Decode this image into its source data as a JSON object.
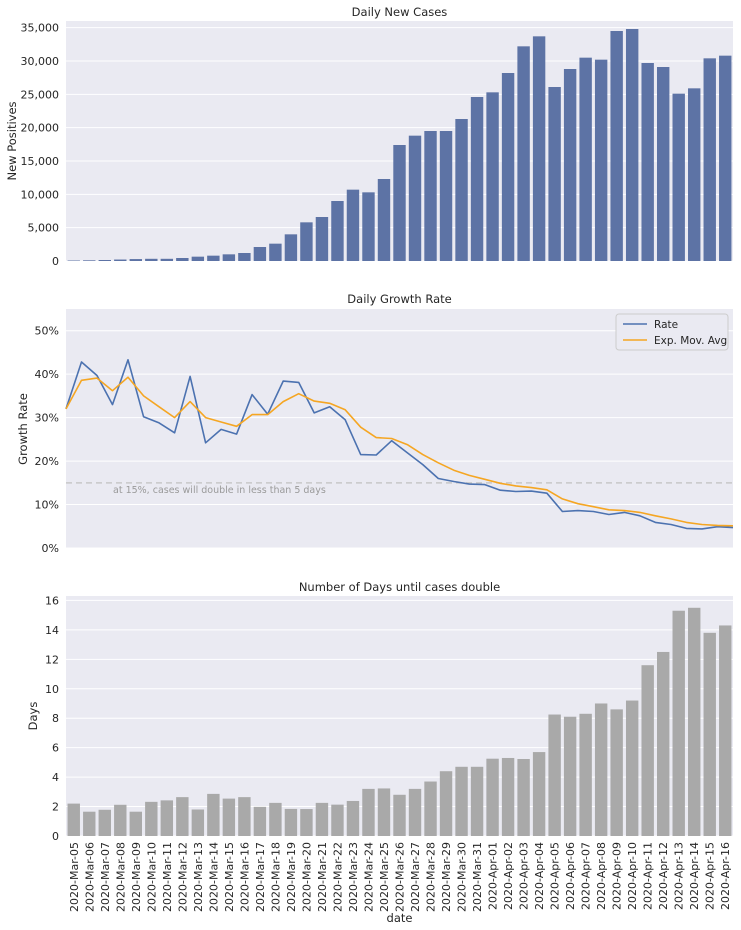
{
  "chart_data": [
    {
      "type": "bar",
      "title": "Daily New Cases",
      "xlabel": "",
      "ylabel": "New Positives",
      "ylim": [
        0,
        36000
      ],
      "yticks": [
        0,
        5000,
        10000,
        15000,
        20000,
        25000,
        30000,
        35000
      ],
      "ytick_labels": [
        "0",
        "5,000",
        "10,000",
        "15,000",
        "20,000",
        "25,000",
        "30,000",
        "35,000"
      ],
      "grid": true,
      "color": "#5d73a5",
      "values": [
        70,
        100,
        150,
        220,
        290,
        330,
        330,
        450,
        650,
        800,
        1000,
        1200,
        2100,
        2600,
        4000,
        5800,
        6600,
        9000,
        10700,
        10300,
        12300,
        17400,
        18800,
        19500,
        19500,
        21300,
        24600,
        25300,
        28200,
        32200,
        33700,
        26100,
        28800,
        30500,
        30200,
        34500,
        34800,
        29700,
        29100,
        25100,
        25900,
        30400,
        30800
      ]
    },
    {
      "type": "line",
      "title": "Daily Growth Rate",
      "xlabel": "",
      "ylabel": "Growth Rate",
      "ylim": [
        0,
        0.55
      ],
      "yticks": [
        0,
        0.1,
        0.2,
        0.3,
        0.4,
        0.5
      ],
      "ytick_labels": [
        "0%",
        "10%",
        "20%",
        "30%",
        "40%",
        "50%"
      ],
      "grid": true,
      "legend": "top-right",
      "series": [
        {
          "name": "Rate",
          "color": "#4c72b0",
          "values": [
            0.32,
            0.428,
            0.397,
            0.33,
            0.433,
            0.302,
            0.288,
            0.265,
            0.395,
            0.242,
            0.273,
            0.262,
            0.353,
            0.308,
            0.384,
            0.381,
            0.311,
            0.325,
            0.295,
            0.215,
            0.214,
            0.247,
            0.219,
            0.192,
            0.16,
            0.153,
            0.147,
            0.146,
            0.133,
            0.13,
            0.131,
            0.126,
            0.084,
            0.086,
            0.084,
            0.077,
            0.082,
            0.074,
            0.059,
            0.054,
            0.045,
            0.044,
            0.049,
            0.047
          ]
        },
        {
          "name": "Exp. Mov. Avg",
          "color": "#f5a623",
          "values": [
            0.32,
            0.386,
            0.391,
            0.362,
            0.393,
            0.35,
            0.325,
            0.3,
            0.337,
            0.3,
            0.29,
            0.28,
            0.307,
            0.307,
            0.337,
            0.355,
            0.338,
            0.333,
            0.318,
            0.278,
            0.254,
            0.252,
            0.238,
            0.215,
            0.196,
            0.179,
            0.167,
            0.158,
            0.149,
            0.143,
            0.139,
            0.134,
            0.113,
            0.102,
            0.095,
            0.088,
            0.086,
            0.082,
            0.074,
            0.067,
            0.059,
            0.054,
            0.052,
            0.051
          ]
        }
      ],
      "reference_line": {
        "y": 0.15,
        "color": "#c8c8c8",
        "label": "at 15%, cases will double in less than 5 days"
      }
    },
    {
      "type": "bar",
      "title": "Number of Days until cases double",
      "xlabel": "date",
      "ylabel": "Days",
      "ylim": [
        0,
        16.3
      ],
      "yticks": [
        0,
        2,
        4,
        6,
        8,
        10,
        12,
        14,
        16
      ],
      "ytick_labels": [
        "0",
        "2",
        "4",
        "6",
        "8",
        "10",
        "12",
        "14",
        "16"
      ],
      "grid": true,
      "color": "#a9a9a9",
      "categories": [
        "2020-Mar-05",
        "2020-Mar-06",
        "2020-Mar-07",
        "2020-Mar-08",
        "2020-Mar-09",
        "2020-Mar-10",
        "2020-Mar-11",
        "2020-Mar-12",
        "2020-Mar-13",
        "2020-Mar-14",
        "2020-Mar-15",
        "2020-Mar-16",
        "2020-Mar-17",
        "2020-Mar-18",
        "2020-Mar-19",
        "2020-Mar-20",
        "2020-Mar-21",
        "2020-Mar-22",
        "2020-Mar-23",
        "2020-Mar-24",
        "2020-Mar-25",
        "2020-Mar-26",
        "2020-Mar-27",
        "2020-Mar-28",
        "2020-Mar-29",
        "2020-Mar-30",
        "2020-Mar-31",
        "2020-Apr-01",
        "2020-Apr-02",
        "2020-Apr-03",
        "2020-Apr-04",
        "2020-Apr-05",
        "2020-Apr-06",
        "2020-Apr-07",
        "2020-Apr-08",
        "2020-Apr-09",
        "2020-Apr-10",
        "2020-Apr-11",
        "2020-Apr-12",
        "2020-Apr-13",
        "2020-Apr-14",
        "2020-Apr-15",
        "2020-Apr-16"
      ],
      "values": [
        2.2,
        1.65,
        1.78,
        2.12,
        1.65,
        2.32,
        2.42,
        2.64,
        1.8,
        2.86,
        2.54,
        2.64,
        1.98,
        2.25,
        1.84,
        1.83,
        2.25,
        2.13,
        2.38,
        3.2,
        3.23,
        2.8,
        3.2,
        3.7,
        4.4,
        4.7,
        4.7,
        5.25,
        5.3,
        5.23,
        5.7,
        8.25,
        8.1,
        8.3,
        9.0,
        8.6,
        9.2,
        11.6,
        12.5,
        15.3,
        15.5,
        13.8,
        14.3
      ]
    }
  ]
}
